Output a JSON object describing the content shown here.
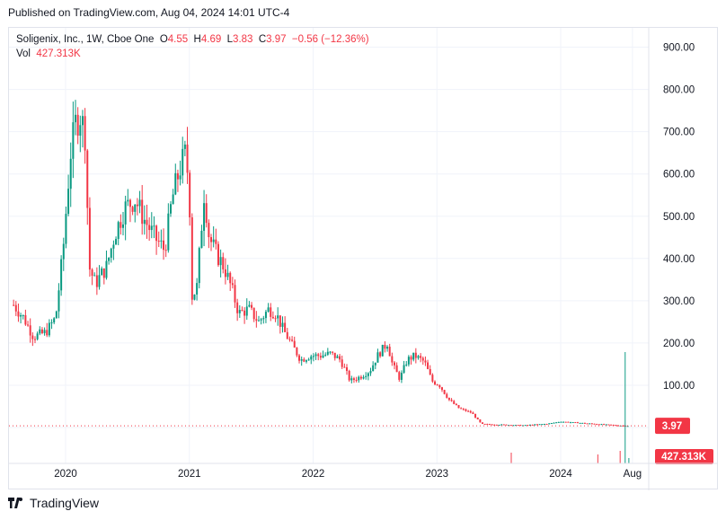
{
  "header": {
    "published": "Published on TradingView.com, Aug 04, 2024 14:01 UTC-4"
  },
  "legend": {
    "name": "Soligenix, Inc., 1W, Cboe One",
    "o_label": "O",
    "o": "4.55",
    "h_label": "H",
    "h": "4.69",
    "l_label": "L",
    "l": "3.83",
    "c_label": "C",
    "c": "3.97",
    "change": "−0.56 (−12.36%)",
    "vol_label": "Vol",
    "vol": "427.313K"
  },
  "footer": {
    "brand": "TradingView"
  },
  "colors": {
    "up": "#089981",
    "down": "#f23645",
    "grid": "#f0f3fa",
    "axis_text": "#131722"
  },
  "chart_data": {
    "type": "candlestick",
    "title": "Soligenix, Inc., 1W, Cboe One",
    "ylim": [
      -100,
      960
    ],
    "y_ticks": [
      "900.00",
      "800.00",
      "700.00",
      "600.00",
      "500.00",
      "400.00",
      "300.00",
      "200.00",
      "100.00",
      "0"
    ],
    "y_tick_values": [
      900,
      800,
      700,
      600,
      500,
      400,
      300,
      200,
      100,
      0
    ],
    "x_ticks": [
      "2020",
      "2021",
      "2022",
      "2023",
      "2024",
      "Aug"
    ],
    "x_tick_values": [
      2020.0,
      2021.0,
      2022.0,
      2023.0,
      2024.0,
      2024.58
    ],
    "xlim": [
      2019.57,
      2024.7
    ],
    "last_price_label": "3.97",
    "last_price": 3.97,
    "volume_label": "427.313K",
    "price_path": [
      [
        2019.58,
        290
      ],
      [
        2019.66,
        260
      ],
      [
        2019.74,
        215
      ],
      [
        2019.84,
        225
      ],
      [
        2019.92,
        260
      ],
      [
        2019.98,
        420
      ],
      [
        2020.04,
        650
      ],
      [
        2020.08,
        720
      ],
      [
        2020.12,
        740
      ],
      [
        2020.16,
        690
      ],
      [
        2020.19,
        380
      ],
      [
        2020.24,
        340
      ],
      [
        2020.33,
        380
      ],
      [
        2020.4,
        460
      ],
      [
        2020.48,
        520
      ],
      [
        2020.56,
        540
      ],
      [
        2020.64,
        490
      ],
      [
        2020.72,
        450
      ],
      [
        2020.8,
        420
      ],
      [
        2020.86,
        540
      ],
      [
        2020.92,
        610
      ],
      [
        2020.97,
        650
      ],
      [
        2021.0,
        560
      ],
      [
        2021.02,
        310
      ],
      [
        2021.06,
        330
      ],
      [
        2021.12,
        560
      ],
      [
        2021.16,
        450
      ],
      [
        2021.22,
        410
      ],
      [
        2021.28,
        380
      ],
      [
        2021.34,
        330
      ],
      [
        2021.4,
        270
      ],
      [
        2021.48,
        280
      ],
      [
        2021.56,
        250
      ],
      [
        2021.64,
        280
      ],
      [
        2021.7,
        270
      ],
      [
        2021.76,
        230
      ],
      [
        2021.82,
        200
      ],
      [
        2021.9,
        160
      ],
      [
        2021.98,
        170
      ],
      [
        2022.06,
        170
      ],
      [
        2022.14,
        175
      ],
      [
        2022.22,
        160
      ],
      [
        2022.3,
        110
      ],
      [
        2022.38,
        120
      ],
      [
        2022.46,
        135
      ],
      [
        2022.52,
        170
      ],
      [
        2022.6,
        200
      ],
      [
        2022.64,
        150
      ],
      [
        2022.7,
        115
      ],
      [
        2022.76,
        160
      ],
      [
        2022.82,
        170
      ],
      [
        2022.9,
        155
      ],
      [
        2022.96,
        110
      ],
      [
        2023.02,
        100
      ],
      [
        2023.1,
        65
      ],
      [
        2023.18,
        45
      ],
      [
        2023.28,
        35
      ],
      [
        2023.36,
        8
      ],
      [
        2023.5,
        7
      ],
      [
        2023.7,
        5
      ],
      [
        2023.9,
        9
      ],
      [
        2024.0,
        14
      ],
      [
        2024.1,
        12
      ],
      [
        2024.2,
        10
      ],
      [
        2024.3,
        8
      ],
      [
        2024.4,
        6
      ],
      [
        2024.5,
        4.5
      ],
      [
        2024.56,
        3.97
      ]
    ]
  }
}
